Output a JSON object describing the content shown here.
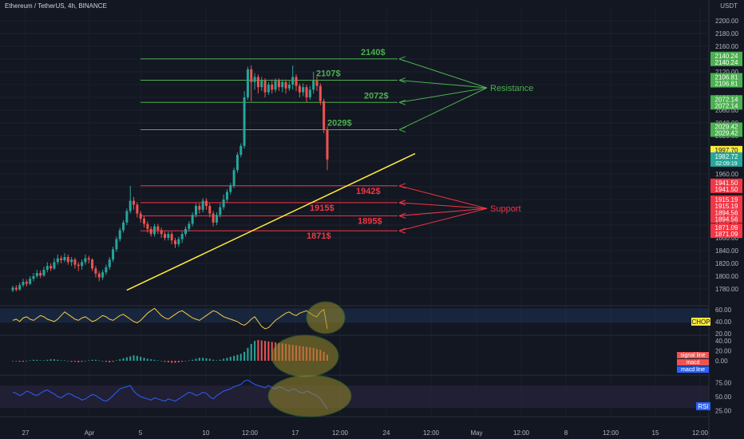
{
  "header": {
    "symbol_title": "Ethereum / TetherUS, 4h, BINANCE",
    "currency": "USDT"
  },
  "colors": {
    "background": "#131722",
    "up": "#26a69a",
    "down": "#ef5350",
    "resistance": "#4caf50",
    "support": "#f23645",
    "trendline": "#ffeb3b",
    "chop_line": "#f7c948",
    "rsi_line": "#2962ff",
    "highlight": "#9a8a2c"
  },
  "chart_data": [
    {
      "type": "candlestick",
      "title": "Ethereum / TetherUS, 4h, BINANCE",
      "ylabel": "USDT",
      "ylim": [
        1760,
        2220
      ],
      "grid": true,
      "y_ticks": [
        "2200.00",
        "2180.00",
        "2160.00",
        "2140.00",
        "2120.00",
        "2100.00",
        "2080.00",
        "2060.00",
        "2040.00",
        "2020.00",
        "2000.00",
        "1980.00",
        "1960.00",
        "1940.00",
        "1920.00",
        "1900.00",
        "1880.00",
        "1860.00",
        "1840.00",
        "1820.00",
        "1800.00",
        "1780.00"
      ],
      "x_ticks": [
        "27",
        "Apr",
        "5",
        "10",
        "12:00",
        "17",
        "12:00",
        "24",
        "12:00",
        "May",
        "12:00",
        "8",
        "12:00",
        "15",
        "12:00"
      ],
      "candles": [
        [
          1778,
          1782,
          1775,
          1785
        ],
        [
          1782,
          1779,
          1776,
          1786
        ],
        [
          1779,
          1786,
          1777,
          1790
        ],
        [
          1786,
          1791,
          1783,
          1796
        ],
        [
          1791,
          1788,
          1784,
          1795
        ],
        [
          1788,
          1796,
          1786,
          1800
        ],
        [
          1796,
          1800,
          1792,
          1805
        ],
        [
          1800,
          1805,
          1797,
          1810
        ],
        [
          1805,
          1801,
          1797,
          1809
        ],
        [
          1801,
          1810,
          1799,
          1815
        ],
        [
          1810,
          1816,
          1806,
          1822
        ],
        [
          1816,
          1812,
          1808,
          1820
        ],
        [
          1812,
          1822,
          1810,
          1828
        ],
        [
          1822,
          1828,
          1818,
          1834
        ],
        [
          1828,
          1825,
          1820,
          1832
        ],
        [
          1825,
          1830,
          1822,
          1836
        ],
        [
          1830,
          1822,
          1818,
          1834
        ],
        [
          1822,
          1826,
          1816,
          1830
        ],
        [
          1826,
          1818,
          1812,
          1829
        ],
        [
          1818,
          1816,
          1808,
          1822
        ],
        [
          1816,
          1822,
          1810,
          1826
        ],
        [
          1822,
          1828,
          1818,
          1834
        ],
        [
          1828,
          1826,
          1820,
          1832
        ],
        [
          1826,
          1812,
          1808,
          1828
        ],
        [
          1812,
          1804,
          1798,
          1816
        ],
        [
          1804,
          1798,
          1792,
          1808
        ],
        [
          1798,
          1806,
          1794,
          1810
        ],
        [
          1806,
          1814,
          1802,
          1818
        ],
        [
          1814,
          1826,
          1810,
          1830
        ],
        [
          1826,
          1842,
          1822,
          1846
        ],
        [
          1842,
          1858,
          1838,
          1862
        ],
        [
          1858,
          1872,
          1854,
          1876
        ],
        [
          1872,
          1884,
          1868,
          1888
        ],
        [
          1884,
          1902,
          1880,
          1906
        ],
        [
          1902,
          1918,
          1898,
          1941.5
        ],
        [
          1918,
          1912,
          1904,
          1924
        ],
        [
          1912,
          1898,
          1892,
          1916
        ],
        [
          1898,
          1890,
          1884,
          1902
        ],
        [
          1890,
          1882,
          1876,
          1894
        ],
        [
          1882,
          1874,
          1868,
          1886
        ],
        [
          1874,
          1866,
          1862,
          1878
        ],
        [
          1866,
          1878,
          1862,
          1882
        ],
        [
          1878,
          1872,
          1866,
          1882
        ],
        [
          1872,
          1866,
          1860,
          1876
        ],
        [
          1866,
          1860,
          1856,
          1870
        ],
        [
          1860,
          1866,
          1856,
          1870
        ],
        [
          1866,
          1856,
          1850,
          1870
        ],
        [
          1856,
          1850,
          1844,
          1860
        ],
        [
          1850,
          1858,
          1846,
          1862
        ],
        [
          1858,
          1866,
          1852,
          1870
        ],
        [
          1866,
          1874,
          1862,
          1878
        ],
        [
          1874,
          1882,
          1870,
          1886
        ],
        [
          1882,
          1896,
          1878,
          1900
        ],
        [
          1896,
          1910,
          1892,
          1914
        ],
        [
          1910,
          1904,
          1898,
          1914
        ],
        [
          1904,
          1918,
          1900,
          1922
        ],
        [
          1918,
          1910,
          1904,
          1922
        ],
        [
          1910,
          1898,
          1892,
          1914
        ],
        [
          1898,
          1884,
          1878,
          1902
        ],
        [
          1884,
          1896,
          1880,
          1900
        ],
        [
          1896,
          1908,
          1892,
          1914
        ],
        [
          1908,
          1920,
          1904,
          1928
        ],
        [
          1920,
          1932,
          1916,
          1936
        ],
        [
          1932,
          1942,
          1928,
          1946
        ],
        [
          1942,
          1966,
          1938,
          1970
        ],
        [
          1966,
          1990,
          1962,
          1994
        ],
        [
          1990,
          2004,
          1986,
          2008
        ],
        [
          2004,
          2080,
          2000,
          2090
        ],
        [
          2080,
          2124,
          2076,
          2128
        ],
        [
          2124,
          2104,
          2074,
          2130
        ],
        [
          2104,
          2112,
          2092,
          2118
        ],
        [
          2112,
          2096,
          2086,
          2116
        ],
        [
          2096,
          2106,
          2090,
          2112
        ],
        [
          2106,
          2088,
          2080,
          2110
        ],
        [
          2088,
          2100,
          2084,
          2104
        ],
        [
          2100,
          2092,
          2086,
          2108
        ],
        [
          2092,
          2106,
          2088,
          2110
        ],
        [
          2106,
          2096,
          2090,
          2110
        ],
        [
          2096,
          2104,
          2088,
          2108
        ],
        [
          2104,
          2094,
          2086,
          2108
        ],
        [
          2094,
          2100,
          2090,
          2106
        ],
        [
          2100,
          2112,
          2092,
          2130
        ],
        [
          2112,
          2098,
          2090,
          2116
        ],
        [
          2098,
          2088,
          2080,
          2102
        ],
        [
          2088,
          2096,
          2082,
          2102
        ],
        [
          2096,
          2080,
          2072,
          2100
        ],
        [
          2080,
          2092,
          2076,
          2098
        ],
        [
          2092,
          2106,
          2086,
          2120
        ],
        [
          2106,
          2098,
          2090,
          2112
        ],
        [
          2098,
          2074,
          2068,
          2102
        ],
        [
          2074,
          2030,
          2024,
          2078
        ],
        [
          2030,
          1982.72,
          1966,
          2034
        ]
      ]
    },
    {
      "type": "horizontal_levels",
      "resistance": [
        {
          "label": "2140$",
          "value": 2140.24
        },
        {
          "label": "2107$",
          "value": 2106.81
        },
        {
          "label": "2072$",
          "value": 2072.14
        },
        {
          "label": "2029$",
          "value": 2029.42
        }
      ],
      "support": [
        {
          "label": "1942$",
          "value": 1941.5
        },
        {
          "label": "1915$",
          "value": 1915.19
        },
        {
          "label": "1895$",
          "value": 1894.56
        },
        {
          "label": "1871$",
          "value": 1871.09
        }
      ],
      "annotations": [
        "Resistance",
        "Support"
      ],
      "trendline": {
        "from_candle": 37,
        "from_value": 1778,
        "to_candle": 128,
        "to_value": 1992
      }
    },
    {
      "type": "line",
      "name": "CHOP",
      "ylim": [
        20,
        65
      ],
      "y_ticks": [
        "60.00",
        "40.00",
        "20.00"
      ],
      "band": [
        38.2,
        61.8
      ],
      "values": [
        42,
        44,
        40,
        46,
        48,
        44,
        42,
        46,
        50,
        48,
        44,
        42,
        40,
        44,
        50,
        56,
        52,
        48,
        44,
        42,
        46,
        48,
        44,
        40,
        42,
        46,
        50,
        48,
        44,
        42,
        46,
        50,
        52,
        48,
        44,
        40,
        38,
        42,
        48,
        54,
        58,
        62,
        56,
        50,
        46,
        44,
        48,
        52,
        56,
        58,
        54,
        50,
        46,
        44,
        42,
        46,
        50,
        54,
        58,
        56,
        52,
        48,
        46,
        44,
        42,
        40,
        36,
        34,
        38,
        44,
        48,
        40,
        32,
        28,
        30,
        36,
        42,
        46,
        50,
        54,
        56,
        52,
        50,
        54,
        56,
        58,
        54,
        50,
        48,
        56,
        60,
        28
      ]
    },
    {
      "type": "histogram",
      "name": "MACD",
      "y_ticks": [
        "40.00",
        "20.00",
        "0.00"
      ],
      "legend": [
        "signal line",
        "macd",
        "macd line"
      ],
      "values": [
        -1,
        -1,
        -2,
        -2,
        -1,
        1,
        2,
        2,
        1,
        1,
        2,
        3,
        3,
        2,
        1,
        1,
        -1,
        -2,
        -2,
        -3,
        -2,
        -1,
        1,
        2,
        2,
        1,
        -1,
        -2,
        -3,
        -2,
        1,
        3,
        5,
        7,
        9,
        11,
        10,
        8,
        6,
        4,
        3,
        2,
        1,
        -1,
        -2,
        -3,
        -4,
        -4,
        -3,
        -2,
        -1,
        1,
        2,
        4,
        6,
        6,
        5,
        4,
        2,
        1,
        2,
        4,
        6,
        8,
        10,
        12,
        14,
        18,
        26,
        34,
        40,
        42,
        41,
        40,
        39,
        38,
        37,
        36,
        35,
        34,
        33,
        32,
        31,
        30,
        29,
        28,
        27,
        26,
        24,
        22,
        18,
        12
      ]
    },
    {
      "type": "line",
      "name": "RSI",
      "ylim": [
        20,
        80
      ],
      "y_ticks": [
        "75.00",
        "50.00",
        "25.00"
      ],
      "band": [
        30,
        70
      ],
      "values": [
        58,
        56,
        52,
        55,
        60,
        58,
        54,
        52,
        56,
        60,
        62,
        58,
        55,
        50,
        48,
        52,
        56,
        54,
        50,
        48,
        44,
        46,
        50,
        54,
        52,
        48,
        44,
        42,
        46,
        52,
        58,
        64,
        66,
        68,
        70,
        60,
        54,
        50,
        48,
        46,
        44,
        48,
        46,
        44,
        42,
        46,
        44,
        42,
        46,
        50,
        54,
        58,
        56,
        52,
        54,
        58,
        56,
        50,
        46,
        52,
        56,
        60,
        62,
        64,
        68,
        70,
        72,
        78,
        80,
        76,
        72,
        70,
        68,
        66,
        70,
        66,
        64,
        68,
        66,
        62,
        60,
        64,
        62,
        58,
        56,
        60,
        58,
        54,
        52,
        46,
        38,
        28
      ]
    }
  ],
  "price_labels": {
    "axis": [
      {
        "text": "2140.24",
        "value": 2140.24,
        "kind": "resistance"
      },
      {
        "text": "2106.81",
        "value": 2106.81,
        "kind": "resistance"
      },
      {
        "text": "2072.14",
        "value": 2072.14,
        "kind": "resistance"
      },
      {
        "text": "2029.42",
        "value": 2029.42,
        "kind": "resistance"
      },
      {
        "text": "1941.50",
        "value": 1941.5,
        "kind": "support"
      },
      {
        "text": "1915.19",
        "value": 1915.19,
        "kind": "support"
      },
      {
        "text": "1894.56",
        "value": 1894.56,
        "kind": "support"
      },
      {
        "text": "1871.09",
        "value": 1871.09,
        "kind": "support"
      },
      {
        "text": "1997.70",
        "value": 1997.7,
        "kind": "high"
      }
    ],
    "current_price": "1982.72",
    "countdown": "02:09:19",
    "chop_tag": "CHOP",
    "rsi_tag": "RSI"
  }
}
